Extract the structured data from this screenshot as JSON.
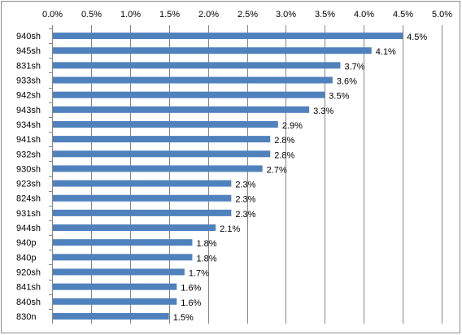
{
  "chart_data": {
    "type": "bar",
    "orientation": "horizontal",
    "categories": [
      "940sh",
      "945sh",
      "831sh",
      "933sh",
      "942sh",
      "943sh",
      "934sh",
      "941sh",
      "932sh",
      "930sh",
      "923sh",
      "824sh",
      "931sh",
      "944sh",
      "940p",
      "840p",
      "920sh",
      "841sh",
      "840sh",
      "830n"
    ],
    "values": [
      4.5,
      4.1,
      3.7,
      3.6,
      3.5,
      3.3,
      2.9,
      2.8,
      2.8,
      2.7,
      2.3,
      2.3,
      2.3,
      2.1,
      1.8,
      1.8,
      1.7,
      1.6,
      1.6,
      1.5
    ],
    "data_labels": [
      "4.5%",
      "4.1%",
      "3.7%",
      "3.6%",
      "3.5%",
      "3.3%",
      "2.9%",
      "2.8%",
      "2.8%",
      "2.7%",
      "2.3%",
      "2.3%",
      "2.3%",
      "2.1%",
      "1.8%",
      "1.8%",
      "1.7%",
      "1.6%",
      "1.6%",
      "1.5%"
    ],
    "x_ticks": [
      "0.0%",
      "0.5%",
      "1.0%",
      "1.5%",
      "2.0%",
      "2.5%",
      "3.0%",
      "3.5%",
      "4.0%",
      "4.5%",
      "5.0%"
    ],
    "xlim": [
      0,
      5.0
    ],
    "x_axis_position": "top",
    "grid": true,
    "legend": "none",
    "title": "",
    "xlabel": "",
    "ylabel": "",
    "bar_color": "#4f81bd",
    "grid_color": "#868686"
  }
}
